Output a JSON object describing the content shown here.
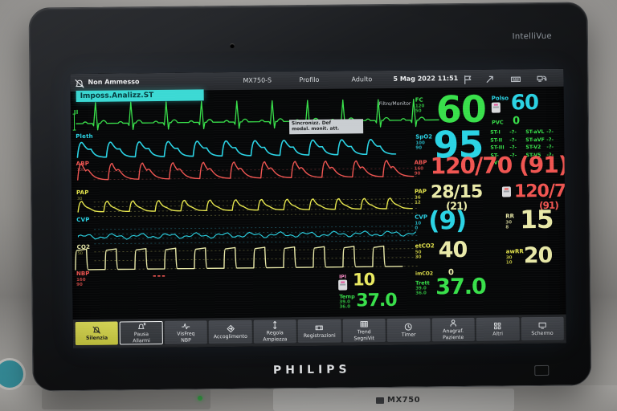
{
  "device": {
    "brand": "PHILIPS",
    "line": "IntelliVue",
    "bench_label": "MX750"
  },
  "status_bar": {
    "alarm_text": "Non Ammesso",
    "bed": "MX750-S",
    "profile": "Profilo",
    "category": "Adulto",
    "datetime": "5 Mag 2022 11:51"
  },
  "banner": {
    "text": "Imposs.Analizz.ST"
  },
  "ecg": {
    "lead": "II",
    "filter": "Filtro/Monitor",
    "inop1": "Sincronizz. Def",
    "inop2": "modal. monit. att."
  },
  "waves": {
    "pleth": {
      "label": "Pleth"
    },
    "abp": {
      "label": "ABP",
      "scale": "100"
    },
    "pap": {
      "label": "PAP",
      "scale": "30"
    },
    "cvp": {
      "label": "CVP"
    },
    "co2": {
      "label": "CO2",
      "scale": "50"
    },
    "nbp_row": {
      "label": "NBP",
      "hi": "160",
      "lo": "90",
      "value": "---"
    }
  },
  "numerics": {
    "fc": {
      "label": "FC",
      "value": "60",
      "hi": "120",
      "lo": "50"
    },
    "polso": {
      "label": "Polso",
      "value": "60"
    },
    "pvc": {
      "label": "PVC",
      "value": "0"
    },
    "spo2": {
      "label": "SpO2",
      "value": "95",
      "hi": "100",
      "lo": "90"
    },
    "abp": {
      "label": "ABP",
      "value": "120/70",
      "mean": "(91)",
      "hi": "160",
      "lo": "90"
    },
    "pap": {
      "label": "PAP",
      "value": "28/15",
      "mean": "(21)",
      "hi": "36",
      "lo": "12"
    },
    "nbp": {
      "label": "NBP",
      "value": "120/70",
      "mean": "(91)"
    },
    "cvp": {
      "label": "CVP",
      "value": "(9)",
      "hi": "10",
      "lo": "0"
    },
    "rr": {
      "label": "RR",
      "value": "15",
      "hi": "30",
      "lo": "8"
    },
    "etco2": {
      "label": "etCO2",
      "value": "40",
      "hi": "50",
      "lo": "30"
    },
    "awrr": {
      "label": "awRR",
      "value": "20",
      "hi": "30",
      "lo": "10"
    },
    "imco2": {
      "label": "imCO2",
      "value": "0"
    },
    "trett": {
      "label": "Trett",
      "value": "37.0",
      "hi": "39.0",
      "lo": "36.0"
    },
    "ipi": {
      "label": "IPI",
      "value": "10"
    },
    "temp": {
      "label": "Temp",
      "value": "37.0",
      "hi": "39.0",
      "lo": "36.0"
    },
    "st": [
      {
        "l1": "ST-I",
        "v1": "-?-",
        "l2": "ST-aVL",
        "v2": "-?-"
      },
      {
        "l1": "ST-II",
        "v1": "-?-",
        "l2": "ST-aVF",
        "v2": "-?-"
      },
      {
        "l1": "ST-III",
        "v1": "-?-",
        "l2": "ST-V2",
        "v2": "-?-"
      },
      {
        "l1": "ST-aVR",
        "v1": "-?-",
        "l2": "ST-V5",
        "v2": "-?-"
      }
    ]
  },
  "toolbar": {
    "buttons": [
      {
        "l1": "Silenzia",
        "l2": ""
      },
      {
        "l1": "Pausa",
        "l2": "Allarmi"
      },
      {
        "l1": "VisFreq",
        "l2": "NBP"
      },
      {
        "l1": "Accoglimento",
        "l2": ""
      },
      {
        "l1": "Regola",
        "l2": "Ampiezza"
      },
      {
        "l1": "Registrazioni",
        "l2": ""
      },
      {
        "l1": "Trend",
        "l2": "SegniVit"
      },
      {
        "l1": "Timer",
        "l2": ""
      },
      {
        "l1": "Anagraf.",
        "l2": "Paziente"
      },
      {
        "l1": "Altri",
        "l2": ""
      },
      {
        "l1": "Schermo",
        "l2": ""
      }
    ]
  },
  "colors": {
    "green": "#38df4a",
    "cyan": "#2ad3e4",
    "red": "#f05551",
    "yellow": "#e3e34c",
    "pale_yellow": "#e9e9a8",
    "pink": "#ff8fc9",
    "white": "#e8eaec",
    "dim_red": "#5c2a2a",
    "dim_yellow": "#56562f",
    "dim_cyan": "#1d4f5a",
    "dim_green": "#1c5a28"
  }
}
